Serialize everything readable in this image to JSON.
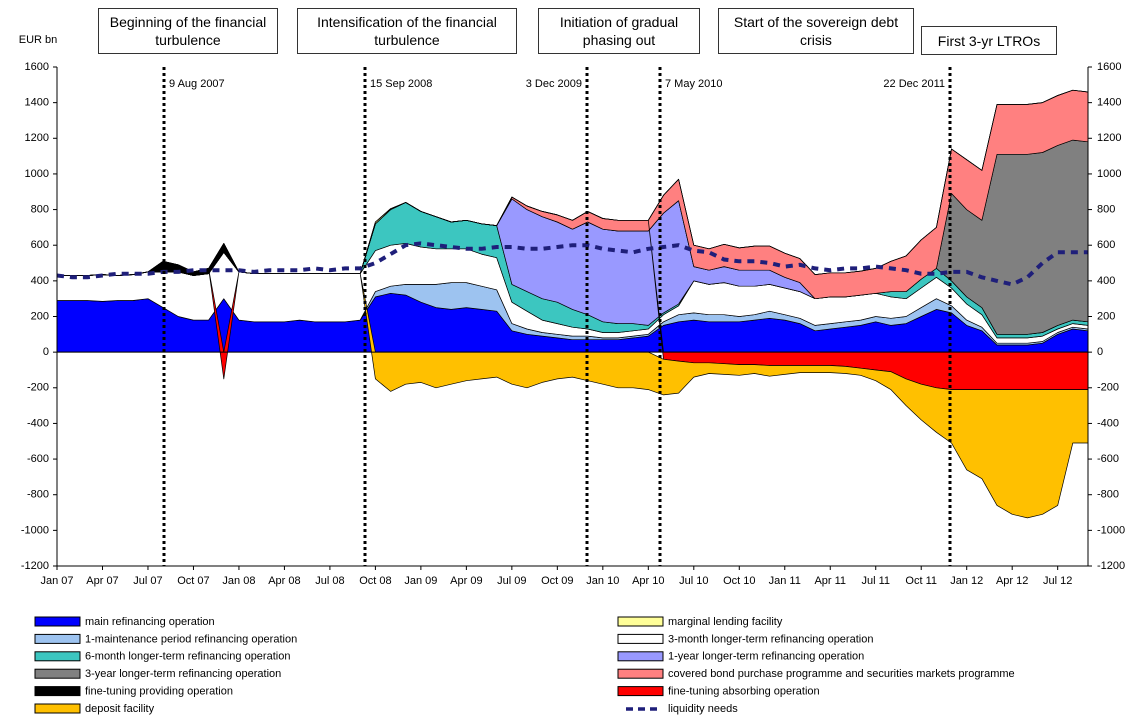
{
  "chart_data": {
    "type": "stacked_area",
    "y_label": "EUR bn",
    "phases": [
      "Beginning of the financial turbulence",
      "Intensification of the financial turbulence",
      "Initiation of gradual phasing out",
      "Start of the sovereign debt crisis",
      "First 3-yr LTROs"
    ],
    "events": [
      "9 Aug 2007",
      "15 Sep 2008",
      "3 Dec 2009",
      "7 May 2010",
      "22 Dec 2011"
    ],
    "categories": [
      "Jan 07",
      null,
      null,
      "Apr 07",
      null,
      null,
      "Jul 07",
      null,
      null,
      "Oct 07",
      null,
      null,
      "Jan 08",
      null,
      null,
      "Apr 08",
      null,
      null,
      "Jul 08",
      null,
      null,
      "Oct 08",
      null,
      null,
      "Jan 09",
      null,
      null,
      "Apr 09",
      null,
      null,
      "Jul 09",
      null,
      null,
      "Oct 09",
      null,
      null,
      "Jan 10",
      null,
      null,
      "Apr 10",
      null,
      null,
      "Jul 10",
      null,
      null,
      "Oct 10",
      null,
      null,
      "Jan 11",
      null,
      null,
      "Apr 11",
      null,
      null,
      "Jul 11",
      null,
      null,
      "Oct 11",
      null,
      null,
      "Jan 12",
      null,
      null,
      "Apr 12",
      null,
      null,
      "Jul 12",
      null,
      null
    ],
    "ylim": [
      -1200,
      1600
    ],
    "yticks": [
      -1200,
      -1000,
      -800,
      -600,
      -400,
      -200,
      0,
      200,
      400,
      600,
      800,
      1000,
      1200,
      1400,
      1600
    ],
    "series": [
      {
        "name": "main refinancing operation",
        "color": "#0000ff",
        "values": [
          290,
          290,
          290,
          285,
          290,
          290,
          300,
          250,
          200,
          180,
          180,
          300,
          180,
          170,
          170,
          170,
          180,
          170,
          170,
          170,
          180,
          310,
          330,
          320,
          280,
          250,
          240,
          250,
          240,
          230,
          120,
          100,
          90,
          80,
          70,
          70,
          70,
          70,
          80,
          90,
          150,
          170,
          180,
          170,
          170,
          170,
          180,
          190,
          180,
          160,
          120,
          130,
          140,
          150,
          170,
          150,
          160,
          200,
          240,
          220,
          150,
          120,
          40,
          40,
          40,
          50,
          100,
          130,
          120
        ]
      },
      {
        "name": "1-maintenance period refinancing operation",
        "color": "#9dc3f0",
        "values": [
          0,
          0,
          0,
          0,
          0,
          0,
          0,
          0,
          0,
          0,
          0,
          0,
          0,
          0,
          0,
          0,
          0,
          0,
          0,
          0,
          0,
          30,
          40,
          60,
          100,
          130,
          150,
          140,
          130,
          120,
          40,
          30,
          20,
          20,
          20,
          20,
          10,
          10,
          10,
          10,
          20,
          40,
          40,
          40,
          40,
          30,
          30,
          40,
          30,
          30,
          30,
          30,
          30,
          30,
          30,
          40,
          40,
          50,
          60,
          40,
          30,
          20,
          10,
          10,
          10,
          10,
          10,
          10,
          10
        ]
      },
      {
        "name": "3-month longer-term refinancing operation",
        "color": "#ffffff",
        "values": [
          140,
          140,
          140,
          150,
          140,
          145,
          150,
          200,
          250,
          250,
          260,
          260,
          270,
          270,
          270,
          270,
          260,
          270,
          270,
          270,
          260,
          230,
          230,
          230,
          210,
          200,
          190,
          190,
          180,
          180,
          120,
          100,
          70,
          60,
          50,
          40,
          30,
          30,
          30,
          30,
          40,
          50,
          180,
          170,
          180,
          170,
          160,
          150,
          150,
          150,
          150,
          150,
          140,
          140,
          130,
          120,
          100,
          110,
          120,
          100,
          90,
          70,
          30,
          30,
          30,
          30,
          20,
          20,
          20
        ]
      },
      {
        "name": "6-month longer-term refinancing operation",
        "color": "#3cc6c0",
        "values": [
          0,
          0,
          0,
          0,
          0,
          0,
          0,
          0,
          0,
          0,
          0,
          0,
          0,
          0,
          0,
          0,
          0,
          0,
          0,
          0,
          0,
          150,
          200,
          230,
          200,
          180,
          150,
          160,
          170,
          180,
          100,
          110,
          120,
          120,
          100,
          80,
          60,
          50,
          40,
          20,
          10,
          10,
          0,
          0,
          0,
          0,
          0,
          0,
          0,
          0,
          0,
          0,
          0,
          0,
          0,
          30,
          40,
          50,
          50,
          40,
          40,
          40,
          20,
          20,
          20,
          20,
          20,
          20,
          20
        ]
      },
      {
        "name": "1-year longer-term refinancing operation",
        "color": "#9999ff",
        "values": [
          0,
          0,
          0,
          0,
          0,
          0,
          0,
          0,
          0,
          0,
          0,
          0,
          0,
          0,
          0,
          0,
          0,
          0,
          0,
          0,
          0,
          0,
          0,
          0,
          0,
          0,
          0,
          0,
          0,
          0,
          480,
          460,
          460,
          450,
          450,
          520,
          520,
          520,
          520,
          530,
          560,
          580,
          80,
          80,
          90,
          90,
          90,
          80,
          60,
          50,
          0,
          0,
          0,
          0,
          0,
          0,
          0,
          0,
          0,
          0,
          0,
          0,
          0,
          0,
          0,
          0,
          0,
          0,
          0
        ]
      },
      {
        "name": "3-year longer-term refinancing operation",
        "color": "#808080",
        "values": [
          0,
          0,
          0,
          0,
          0,
          0,
          0,
          0,
          0,
          0,
          0,
          0,
          0,
          0,
          0,
          0,
          0,
          0,
          0,
          0,
          0,
          0,
          0,
          0,
          0,
          0,
          0,
          0,
          0,
          0,
          0,
          0,
          0,
          0,
          0,
          0,
          0,
          0,
          0,
          0,
          0,
          0,
          0,
          0,
          0,
          0,
          0,
          0,
          0,
          0,
          0,
          0,
          0,
          0,
          0,
          0,
          0,
          0,
          0,
          490,
          490,
          490,
          1010,
          1010,
          1010,
          1010,
          1010,
          1010,
          1010
        ]
      },
      {
        "name": "covered bond purchase programme and securities markets programme",
        "color": "#ff8080",
        "values": [
          0,
          0,
          0,
          0,
          0,
          0,
          0,
          0,
          0,
          0,
          0,
          0,
          0,
          0,
          0,
          0,
          0,
          0,
          0,
          0,
          0,
          0,
          0,
          0,
          0,
          0,
          0,
          0,
          0,
          0,
          10,
          20,
          30,
          40,
          50,
          60,
          60,
          60,
          60,
          60,
          100,
          120,
          120,
          120,
          125,
          125,
          135,
          135,
          135,
          135,
          135,
          135,
          135,
          135,
          140,
          170,
          200,
          220,
          230,
          250,
          280,
          280,
          280,
          280,
          280,
          280,
          280,
          280,
          280
        ]
      },
      {
        "name": "fine-tuning providing operation",
        "color": "#000000",
        "values": [
          0,
          0,
          0,
          0,
          0,
          0,
          0,
          60,
          40,
          20,
          30,
          50,
          0,
          0,
          0,
          0,
          0,
          0,
          0,
          0,
          0,
          0,
          0,
          0,
          0,
          0,
          0,
          0,
          0,
          0,
          0,
          0,
          0,
          0,
          0,
          0,
          0,
          0,
          0,
          0,
          0,
          0,
          0,
          0,
          0,
          0,
          0,
          0,
          0,
          0,
          0,
          0,
          0,
          0,
          0,
          0,
          0,
          0,
          0,
          0,
          0,
          0,
          0,
          0,
          0,
          0,
          0,
          0,
          0
        ]
      },
      {
        "name": "marginal lending facility",
        "color": "#ffff99",
        "values": [
          0,
          0,
          0,
          0,
          0,
          0,
          0,
          0,
          0,
          0,
          0,
          0,
          0,
          0,
          0,
          0,
          0,
          0,
          0,
          0,
          0,
          10,
          5,
          0,
          0,
          0,
          0,
          0,
          0,
          0,
          0,
          0,
          0,
          0,
          0,
          0,
          0,
          0,
          0,
          0,
          0,
          0,
          0,
          0,
          0,
          0,
          0,
          0,
          0,
          0,
          0,
          0,
          0,
          0,
          0,
          0,
          0,
          0,
          0,
          0,
          0,
          0,
          0,
          0,
          0,
          0,
          0,
          0,
          0
        ]
      },
      {
        "name": "fine-tuning absorbing operation",
        "color": "#ff0000",
        "values": [
          0,
          0,
          0,
          0,
          0,
          0,
          0,
          0,
          0,
          0,
          0,
          -150,
          0,
          0,
          0,
          0,
          0,
          0,
          0,
          0,
          0,
          0,
          0,
          0,
          0,
          0,
          0,
          0,
          0,
          0,
          0,
          0,
          0,
          0,
          0,
          0,
          0,
          0,
          0,
          0,
          -40,
          -50,
          -60,
          -60,
          -65,
          -70,
          -70,
          -75,
          -75,
          -75,
          -75,
          -75,
          -80,
          -90,
          -100,
          -110,
          -150,
          -180,
          -200,
          -210,
          -210,
          -210,
          -210,
          -210,
          -210,
          -210,
          -210,
          -210,
          -210
        ]
      },
      {
        "name": "deposit facility",
        "color": "#ffc000",
        "values": [
          0,
          0,
          0,
          0,
          0,
          0,
          0,
          0,
          0,
          0,
          0,
          0,
          0,
          0,
          0,
          0,
          0,
          0,
          0,
          0,
          0,
          -150,
          -220,
          -180,
          -170,
          -200,
          -180,
          -160,
          -150,
          -140,
          -180,
          -200,
          -170,
          -150,
          -140,
          -160,
          -180,
          -200,
          -200,
          -210,
          -200,
          -180,
          -80,
          -60,
          -60,
          -60,
          -50,
          -60,
          -50,
          -40,
          -40,
          -40,
          -40,
          -40,
          -60,
          -100,
          -150,
          -200,
          -250,
          -300,
          -450,
          -500,
          -650,
          -700,
          -720,
          -700,
          -650,
          -300,
          -300
        ]
      },
      {
        "name": "liquidity needs",
        "type": "line",
        "color": "#1f1f7a",
        "values": [
          430,
          420,
          420,
          430,
          440,
          440,
          440,
          450,
          450,
          460,
          460,
          460,
          460,
          450,
          460,
          460,
          460,
          470,
          460,
          470,
          470,
          500,
          550,
          600,
          610,
          600,
          590,
          580,
          580,
          590,
          590,
          580,
          580,
          590,
          600,
          600,
          580,
          570,
          560,
          580,
          590,
          600,
          570,
          560,
          520,
          510,
          510,
          500,
          480,
          490,
          470,
          460,
          470,
          470,
          480,
          470,
          460,
          440,
          440,
          450,
          450,
          420,
          400,
          380,
          420,
          500,
          560,
          560,
          560
        ]
      }
    ]
  }
}
